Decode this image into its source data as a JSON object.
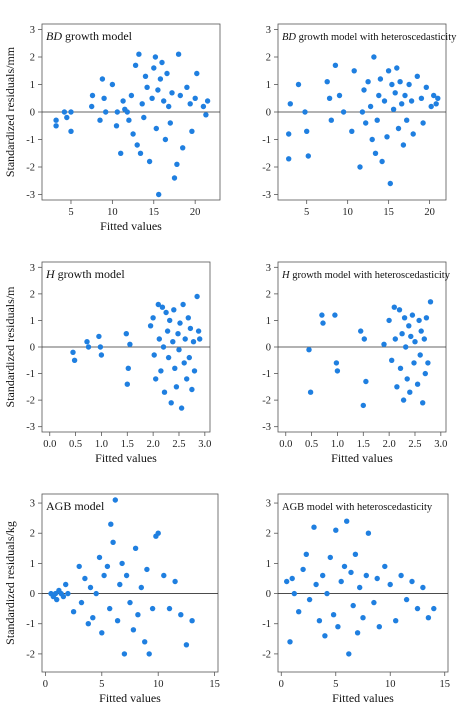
{
  "chart_data": [
    {
      "type": "scatter",
      "title_italic": "BD",
      "title_rest": " growth model",
      "xlabel": "Fitted values",
      "ylabel": "Standardized residuals/mm",
      "xlim": [
        1.5,
        23
      ],
      "ylim": [
        -3.2,
        3.2
      ],
      "xticks": [
        5,
        10,
        15,
        20
      ],
      "xtick_labels": [
        "5",
        "10",
        "15",
        "20"
      ],
      "yticks": [
        -3,
        -2,
        -1,
        0,
        1,
        2,
        3
      ],
      "ytick_labels": [
        "-3",
        "-2",
        "-1",
        "0",
        "1",
        "2",
        "3"
      ],
      "x": [
        3.2,
        3.2,
        4.2,
        4.5,
        5.0,
        5.0,
        7.5,
        7.6,
        8.5,
        8.8,
        9.0,
        9.2,
        10.0,
        10.5,
        10.6,
        11.0,
        11.3,
        11.5,
        11.8,
        12.0,
        12.3,
        12.5,
        12.8,
        13.0,
        13.2,
        13.4,
        13.6,
        13.8,
        14.0,
        14.2,
        14.5,
        14.8,
        15.0,
        15.2,
        15.3,
        15.5,
        15.6,
        15.8,
        16.0,
        16.2,
        16.4,
        16.6,
        16.8,
        17.0,
        17.2,
        17.5,
        17.8,
        18.0,
        18.2,
        18.5,
        19.0,
        19.4,
        19.6,
        20.0,
        20.2,
        21.0,
        21.3,
        21.5
      ],
      "y": [
        -0.3,
        -0.5,
        0.0,
        -0.2,
        0.0,
        -0.7,
        0.2,
        0.6,
        -0.3,
        1.2,
        0.5,
        0.0,
        1.0,
        -0.5,
        0.0,
        -1.5,
        0.4,
        0.1,
        0.0,
        -0.3,
        0.6,
        -0.8,
        1.7,
        -1.2,
        2.1,
        -1.5,
        0.3,
        -0.2,
        1.3,
        0.9,
        -1.8,
        0.5,
        1.6,
        2.0,
        -0.6,
        0.8,
        -3.0,
        1.2,
        1.8,
        0.4,
        -1.0,
        1.4,
        0.2,
        -0.4,
        0.7,
        -2.4,
        -1.9,
        2.1,
        0.6,
        -1.3,
        0.9,
        0.3,
        -0.7,
        0.5,
        1.4,
        0.2,
        -0.1,
        0.4
      ],
      "color": "#1f7fe0"
    },
    {
      "type": "scatter",
      "title_italic": "BD",
      "title_rest": " growth model with heteroscedasticity",
      "xlabel": "",
      "ylabel": "",
      "xlim": [
        1.5,
        22
      ],
      "ylim": [
        -3.2,
        3.2
      ],
      "xticks": [
        5,
        10,
        15,
        20
      ],
      "xtick_labels": [
        "5",
        "10",
        "15",
        "20"
      ],
      "yticks": [
        -3,
        -2,
        -1,
        0,
        1,
        2,
        3
      ],
      "ytick_labels": [
        "-3",
        "-2",
        "-1",
        "0",
        "1",
        "2",
        "3"
      ],
      "x": [
        2.8,
        2.8,
        3.0,
        4.0,
        4.8,
        5.0,
        5.2,
        7.5,
        7.8,
        8.0,
        8.5,
        9.0,
        9.5,
        10.5,
        10.8,
        11.5,
        11.8,
        12.0,
        12.2,
        12.5,
        12.8,
        13.0,
        13.2,
        13.4,
        13.6,
        13.8,
        14.0,
        14.2,
        14.5,
        14.8,
        15.0,
        15.2,
        15.4,
        15.6,
        15.8,
        16.0,
        16.2,
        16.4,
        16.6,
        16.8,
        17.0,
        17.2,
        17.5,
        17.8,
        18.0,
        18.5,
        19.0,
        19.2,
        19.6,
        20.2,
        20.5,
        20.8,
        21.0
      ],
      "y": [
        -0.8,
        -1.7,
        0.3,
        1.0,
        0.0,
        -0.7,
        -1.6,
        1.1,
        0.5,
        -0.3,
        1.7,
        0.6,
        0.0,
        -0.7,
        1.5,
        -2.0,
        0.0,
        0.8,
        -0.4,
        1.1,
        0.2,
        -1.0,
        2.0,
        -1.5,
        -0.3,
        0.6,
        1.2,
        -1.8,
        0.4,
        -0.9,
        1.5,
        -2.6,
        1.0,
        0.1,
        0.7,
        1.6,
        -0.6,
        1.1,
        0.3,
        -1.2,
        0.6,
        -0.3,
        1.0,
        0.4,
        -0.8,
        1.3,
        0.5,
        -0.4,
        0.9,
        0.2,
        0.6,
        0.3,
        0.5
      ],
      "color": "#1f7fe0"
    },
    {
      "type": "scatter",
      "title_italic": "H",
      "title_rest": " growth model",
      "xlabel": "Fitted values",
      "ylabel": "Standardized residuals/m",
      "xlim": [
        -0.15,
        3.1
      ],
      "ylim": [
        -3.2,
        3.2
      ],
      "xticks": [
        0.0,
        0.5,
        1.0,
        1.5,
        2.0,
        2.5,
        3.0
      ],
      "xtick_labels": [
        "0.0",
        "0.5",
        "1.0",
        "1.5",
        "2.0",
        "2.5",
        "3.0"
      ],
      "yticks": [
        -3,
        -2,
        -1,
        0,
        1,
        2,
        3
      ],
      "ytick_labels": [
        "-3",
        "-2",
        "-1",
        "0",
        "1",
        "2",
        "3"
      ],
      "x": [
        0.45,
        0.48,
        0.72,
        0.75,
        0.95,
        0.98,
        1.0,
        1.48,
        1.5,
        1.52,
        1.55,
        1.95,
        2.0,
        2.02,
        2.05,
        2.1,
        2.12,
        2.15,
        2.18,
        2.2,
        2.22,
        2.25,
        2.28,
        2.3,
        2.32,
        2.35,
        2.38,
        2.4,
        2.42,
        2.45,
        2.48,
        2.5,
        2.52,
        2.55,
        2.58,
        2.6,
        2.62,
        2.65,
        2.68,
        2.7,
        2.72,
        2.75,
        2.78,
        2.8,
        2.85,
        2.88,
        2.9
      ],
      "y": [
        -0.2,
        -0.5,
        0.2,
        0.0,
        0.4,
        0.0,
        -0.3,
        0.5,
        -1.4,
        -0.8,
        0.1,
        0.8,
        1.1,
        -0.3,
        -1.2,
        1.6,
        0.3,
        -0.9,
        1.5,
        0.0,
        -1.7,
        1.3,
        0.6,
        -0.4,
        1.0,
        -2.1,
        0.2,
        1.4,
        -0.8,
        -1.5,
        0.5,
        -0.1,
        0.9,
        -2.3,
        1.6,
        -0.6,
        0.3,
        -1.2,
        1.1,
        -0.4,
        0.7,
        -1.6,
        0.2,
        -0.9,
        1.9,
        0.6,
        0.3
      ],
      "color": "#1f7fe0"
    },
    {
      "type": "scatter",
      "title_italic": "H",
      "title_rest": " growth model with heteroscedasticity",
      "xlabel": "Fitted values",
      "ylabel": "",
      "xlim": [
        -0.15,
        3.1
      ],
      "ylim": [
        -3.2,
        3.2
      ],
      "xticks": [
        0.0,
        0.5,
        1.0,
        1.5,
        2.0,
        2.5,
        3.0
      ],
      "xtick_labels": [
        "0.0",
        "0.5",
        "1.0",
        "1.5",
        "2.0",
        "2.5",
        "3.0"
      ],
      "yticks": [
        -3,
        -2,
        -1,
        0,
        1,
        2,
        3
      ],
      "ytick_labels": [
        "-3",
        "-2",
        "-1",
        "0",
        "1",
        "2",
        "3"
      ],
      "x": [
        0.45,
        0.48,
        0.7,
        0.72,
        0.95,
        0.98,
        1.0,
        1.45,
        1.5,
        1.52,
        1.55,
        1.9,
        2.0,
        2.05,
        2.1,
        2.12,
        2.15,
        2.2,
        2.22,
        2.25,
        2.28,
        2.3,
        2.32,
        2.35,
        2.38,
        2.4,
        2.42,
        2.45,
        2.48,
        2.5,
        2.55,
        2.58,
        2.6,
        2.62,
        2.65,
        2.68,
        2.7,
        2.72,
        2.75,
        2.8
      ],
      "y": [
        -0.1,
        -1.7,
        1.2,
        0.9,
        1.2,
        -0.6,
        -0.9,
        0.6,
        -2.2,
        0.3,
        -1.3,
        0.1,
        1.0,
        -0.5,
        1.5,
        0.3,
        -1.5,
        1.4,
        -0.8,
        0.5,
        -2.0,
        1.1,
        0.0,
        -1.2,
        0.8,
        -1.7,
        0.4,
        1.2,
        -0.6,
        0.2,
        -1.4,
        1.0,
        -0.3,
        0.6,
        -2.1,
        0.3,
        -1.0,
        1.1,
        -0.6,
        1.7
      ],
      "color": "#1f7fe0"
    },
    {
      "type": "scatter",
      "title_italic": "",
      "title_rest": "AGB model",
      "xlabel": "Fitted values",
      "ylabel": "Standardized residuals/kg",
      "xlim": [
        -0.3,
        15.3
      ],
      "ylim": [
        -2.6,
        3.3
      ],
      "xticks": [
        0,
        5,
        10,
        15
      ],
      "xtick_labels": [
        "0",
        "5",
        "10",
        "15"
      ],
      "yticks": [
        -2,
        -1,
        0,
        1,
        2,
        3
      ],
      "ytick_labels": [
        "-2",
        "-1",
        "0",
        "1",
        "2",
        "3"
      ],
      "x": [
        0.5,
        0.7,
        0.9,
        1.0,
        1.2,
        1.4,
        1.6,
        1.8,
        2.0,
        2.5,
        3.0,
        3.2,
        3.5,
        3.8,
        4.0,
        4.2,
        4.5,
        4.8,
        5.0,
        5.2,
        5.5,
        5.7,
        5.8,
        6.0,
        6.2,
        6.4,
        6.6,
        6.8,
        7.0,
        7.2,
        7.5,
        7.8,
        8.0,
        8.2,
        8.5,
        8.8,
        9.0,
        9.2,
        9.5,
        9.8,
        10.0,
        10.5,
        11.0,
        11.5,
        12.0,
        12.5,
        13.0
      ],
      "y": [
        0.0,
        -0.1,
        0.0,
        -0.2,
        0.1,
        0.0,
        -0.1,
        0.3,
        0.0,
        -0.6,
        0.9,
        -0.3,
        0.5,
        -1.0,
        0.2,
        -0.8,
        0.0,
        1.2,
        -1.3,
        0.6,
        0.9,
        -0.5,
        2.3,
        1.7,
        3.1,
        -0.9,
        0.3,
        1.0,
        -2.0,
        0.6,
        -0.3,
        -1.2,
        1.5,
        -0.7,
        0.2,
        -1.6,
        0.8,
        -2.0,
        -0.5,
        1.9,
        2.0,
        0.6,
        -0.5,
        0.4,
        -0.7,
        -1.7,
        -0.9
      ],
      "color": "#1f7fe0"
    },
    {
      "type": "scatter",
      "title_italic": "",
      "title_rest": "AGB model with heteroscedasticity",
      "xlabel": "Fitted values",
      "ylabel": "",
      "xlim": [
        -0.3,
        15.3
      ],
      "ylim": [
        -2.6,
        3.3
      ],
      "xticks": [
        0,
        5,
        10,
        15
      ],
      "xtick_labels": [
        "0",
        "5",
        "10",
        "15"
      ],
      "yticks": [
        -2,
        -1,
        0,
        1,
        2,
        3
      ],
      "ytick_labels": [
        "-2",
        "-1",
        "0",
        "1",
        "2",
        "3"
      ],
      "x": [
        0.5,
        0.8,
        1.0,
        1.2,
        1.6,
        2.0,
        2.3,
        2.6,
        3.0,
        3.2,
        3.5,
        3.8,
        4.0,
        4.2,
        4.5,
        4.8,
        5.0,
        5.2,
        5.5,
        5.8,
        6.0,
        6.2,
        6.4,
        6.6,
        6.8,
        7.0,
        7.2,
        7.5,
        7.8,
        8.0,
        8.5,
        8.8,
        9.0,
        9.5,
        10.0,
        10.5,
        11.0,
        11.5,
        12.0,
        12.5,
        13.0,
        13.5,
        14.0
      ],
      "y": [
        0.4,
        -1.6,
        0.5,
        0.0,
        -0.6,
        0.8,
        1.3,
        -0.2,
        2.2,
        0.3,
        -0.9,
        0.6,
        -1.4,
        0.0,
        1.2,
        -0.7,
        2.1,
        -1.1,
        0.4,
        0.9,
        2.4,
        -2.0,
        0.7,
        -0.4,
        1.3,
        -1.3,
        0.2,
        -0.8,
        0.6,
        2.0,
        -0.3,
        0.5,
        -1.1,
        0.9,
        0.3,
        -0.9,
        0.6,
        -0.2,
        0.4,
        -0.5,
        0.2,
        -0.8,
        -0.5
      ],
      "color": "#1f7fe0"
    }
  ]
}
